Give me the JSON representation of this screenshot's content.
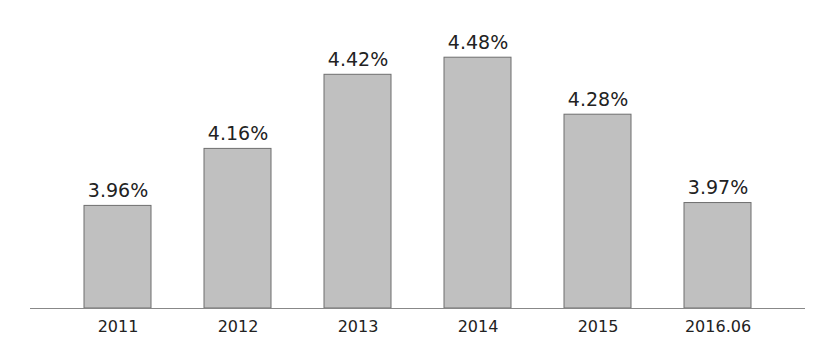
{
  "chart_data": {
    "type": "bar",
    "categories": [
      "2011",
      "2012",
      "2013",
      "2014",
      "2015",
      "2016.06"
    ],
    "values": [
      3.96,
      4.16,
      4.42,
      4.48,
      4.28,
      3.97
    ],
    "value_labels": [
      "3.96%",
      "4.16%",
      "4.42%",
      "4.48%",
      "4.28%",
      "3.97%"
    ],
    "color": "#c0c0c0",
    "ylim": [
      3.6,
      4.6
    ],
    "data_labels": true,
    "tick_labels": "x",
    "grid": false
  }
}
